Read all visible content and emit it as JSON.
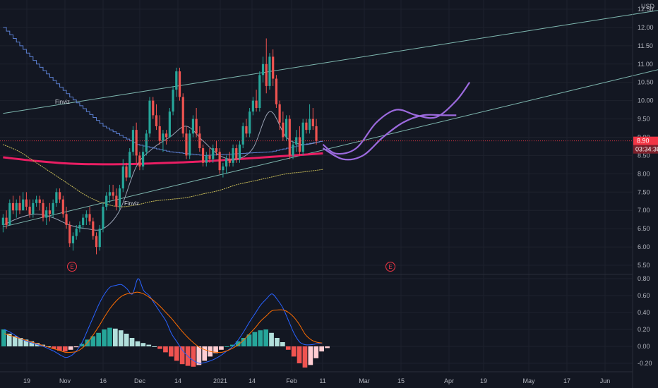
{
  "chart_data": [
    {
      "type": "candlestick",
      "currency": "USD",
      "ylim": [
        5.25,
        12.75
      ],
      "y_ticks": [
        "12.50",
        "12.00",
        "11.50",
        "11.00",
        "10.50",
        "10.00",
        "9.50",
        "9.00",
        "8.50",
        "8.00",
        "7.50",
        "7.00",
        "6.50",
        "6.00",
        "5.50"
      ],
      "current_price": "8.90",
      "countdown": "03:34:36",
      "annotations": [
        "Finviz",
        "Finviz"
      ],
      "events": [
        "E",
        "E"
      ],
      "candles": [
        [
          6.6,
          6.9,
          6.4,
          6.8
        ],
        [
          6.8,
          7.0,
          6.5,
          6.6
        ],
        [
          6.6,
          7.3,
          6.6,
          7.2
        ],
        [
          7.2,
          7.4,
          6.9,
          7.0
        ],
        [
          7.0,
          7.3,
          6.8,
          7.2
        ],
        [
          7.2,
          7.4,
          6.9,
          7.0
        ],
        [
          7.0,
          7.5,
          7.0,
          7.3
        ],
        [
          7.3,
          7.5,
          7.0,
          7.1
        ],
        [
          7.1,
          7.3,
          6.8,
          6.9
        ],
        [
          6.9,
          7.3,
          6.8,
          7.2
        ],
        [
          7.2,
          7.4,
          7.1,
          7.3
        ],
        [
          7.3,
          7.4,
          7.0,
          7.2
        ],
        [
          7.2,
          7.3,
          6.7,
          6.8
        ],
        [
          6.8,
          7.1,
          6.6,
          7.0
        ],
        [
          7.0,
          7.2,
          6.7,
          6.9
        ],
        [
          6.9,
          7.3,
          6.8,
          7.2
        ],
        [
          7.2,
          7.6,
          7.1,
          7.5
        ],
        [
          7.5,
          7.6,
          7.2,
          7.3
        ],
        [
          7.3,
          7.4,
          6.8,
          6.9
        ],
        [
          6.9,
          7.1,
          6.5,
          6.6
        ],
        [
          6.6,
          6.7,
          6.0,
          6.1
        ],
        [
          6.1,
          6.4,
          5.9,
          6.3
        ],
        [
          6.3,
          6.6,
          6.2,
          6.5
        ],
        [
          6.5,
          6.7,
          6.4,
          6.6
        ],
        [
          6.6,
          6.9,
          6.5,
          6.8
        ],
        [
          6.8,
          7.0,
          6.6,
          6.9
        ],
        [
          6.9,
          7.1,
          6.6,
          6.7
        ],
        [
          6.7,
          6.8,
          6.2,
          6.3
        ],
        [
          6.3,
          6.4,
          5.8,
          6.0
        ],
        [
          6.0,
          6.6,
          5.9,
          6.5
        ],
        [
          6.5,
          7.2,
          6.4,
          7.1
        ],
        [
          7.1,
          7.5,
          7.0,
          7.4
        ],
        [
          7.4,
          7.7,
          7.2,
          7.5
        ],
        [
          7.5,
          7.7,
          7.3,
          7.4
        ],
        [
          7.4,
          7.6,
          7.0,
          7.1
        ],
        [
          7.1,
          7.7,
          7.0,
          7.6
        ],
        [
          7.6,
          8.4,
          7.5,
          8.2
        ],
        [
          8.2,
          8.3,
          7.8,
          7.9
        ],
        [
          7.9,
          8.7,
          7.9,
          8.6
        ],
        [
          8.6,
          9.3,
          8.5,
          9.2
        ],
        [
          9.2,
          9.4,
          8.3,
          8.5
        ],
        [
          8.5,
          8.6,
          8.1,
          8.2
        ],
        [
          8.2,
          8.8,
          8.1,
          8.6
        ],
        [
          8.6,
          9.2,
          8.5,
          9.1
        ],
        [
          9.1,
          10.1,
          9.0,
          10.0
        ],
        [
          10.0,
          10.1,
          9.5,
          9.6
        ],
        [
          9.6,
          9.9,
          9.2,
          9.3
        ],
        [
          9.3,
          9.6,
          8.8,
          8.9
        ],
        [
          8.9,
          9.2,
          8.6,
          9.1
        ],
        [
          9.1,
          9.2,
          8.8,
          9.0
        ],
        [
          9.0,
          9.8,
          9.0,
          9.7
        ],
        [
          9.7,
          10.4,
          9.6,
          10.3
        ],
        [
          10.3,
          10.9,
          10.1,
          10.8
        ],
        [
          10.8,
          10.9,
          10.0,
          10.1
        ],
        [
          10.1,
          10.2,
          9.0,
          9.1
        ],
        [
          9.1,
          9.3,
          8.4,
          8.5
        ],
        [
          8.5,
          9.2,
          8.4,
          9.1
        ],
        [
          9.1,
          9.6,
          9.0,
          9.5
        ],
        [
          9.5,
          9.8,
          9.0,
          9.1
        ],
        [
          9.1,
          9.3,
          8.6,
          8.7
        ],
        [
          8.7,
          8.8,
          8.2,
          8.3
        ],
        [
          8.3,
          8.6,
          8.2,
          8.5
        ],
        [
          8.5,
          8.7,
          8.3,
          8.4
        ],
        [
          8.4,
          8.8,
          8.3,
          8.7
        ],
        [
          8.7,
          8.9,
          8.5,
          8.6
        ],
        [
          8.6,
          8.7,
          8.0,
          8.1
        ],
        [
          8.1,
          8.3,
          7.9,
          8.2
        ],
        [
          8.2,
          8.5,
          8.0,
          8.4
        ],
        [
          8.4,
          8.6,
          8.2,
          8.3
        ],
        [
          8.3,
          8.8,
          8.2,
          8.7
        ],
        [
          8.7,
          8.8,
          8.3,
          8.4
        ],
        [
          8.4,
          8.9,
          8.3,
          8.8
        ],
        [
          8.8,
          9.4,
          8.7,
          9.3
        ],
        [
          9.3,
          9.5,
          9.0,
          9.1
        ],
        [
          9.1,
          9.8,
          9.0,
          9.7
        ],
        [
          9.7,
          10.1,
          9.6,
          10.0
        ],
        [
          10.0,
          10.3,
          9.7,
          9.8
        ],
        [
          9.8,
          10.8,
          9.7,
          10.7
        ],
        [
          10.7,
          11.2,
          10.5,
          11.0
        ],
        [
          11.0,
          11.7,
          10.2,
          10.4
        ],
        [
          10.4,
          11.3,
          10.3,
          11.2
        ],
        [
          11.2,
          11.4,
          10.4,
          10.6
        ],
        [
          10.6,
          10.7,
          9.8,
          9.9
        ],
        [
          9.9,
          10.0,
          9.2,
          9.4
        ],
        [
          9.4,
          9.7,
          8.9,
          9.0
        ],
        [
          9.0,
          9.6,
          8.9,
          9.5
        ],
        [
          9.5,
          9.6,
          8.4,
          8.5
        ],
        [
          8.5,
          8.9,
          8.4,
          8.8
        ],
        [
          8.8,
          9.2,
          8.6,
          9.0
        ],
        [
          9.0,
          9.3,
          8.5,
          8.6
        ],
        [
          8.6,
          9.5,
          8.5,
          9.4
        ],
        [
          9.4,
          9.5,
          9.1,
          9.2
        ],
        [
          9.2,
          9.9,
          9.1,
          9.5
        ],
        [
          9.5,
          9.8,
          9.2,
          9.3
        ],
        [
          9.3,
          9.5,
          8.8,
          8.9
        ]
      ],
      "series": [
        {
          "name": "",
          "kind": "sma-pink",
          "x": [
            0,
            10,
            20,
            30,
            40,
            50,
            60,
            70,
            80,
            90,
            96
          ],
          "values": [
            8.45,
            8.35,
            8.28,
            8.26,
            8.27,
            8.3,
            8.34,
            8.4,
            8.46,
            8.52,
            8.56
          ]
        },
        {
          "name": "",
          "kind": "ma-yellow",
          "x": [
            0,
            5,
            10,
            15,
            20,
            25,
            30,
            35,
            40,
            45,
            50,
            55,
            60,
            65,
            70,
            75,
            80,
            85,
            90,
            96
          ],
          "values": [
            8.8,
            8.6,
            8.3,
            8.0,
            7.7,
            7.4,
            7.2,
            7.1,
            7.15,
            7.25,
            7.3,
            7.35,
            7.45,
            7.55,
            7.7,
            7.8,
            7.9,
            8.0,
            8.05,
            8.12
          ]
        },
        {
          "name": "",
          "kind": "ma-thin",
          "x": [
            0,
            5,
            10,
            15,
            20,
            25,
            30,
            35,
            40,
            45,
            50,
            55,
            60,
            65,
            70,
            75,
            80,
            85,
            90,
            96
          ],
          "values": [
            6.6,
            6.8,
            6.9,
            6.8,
            6.6,
            6.5,
            6.5,
            7.0,
            8.2,
            8.7,
            9.0,
            9.3,
            8.9,
            8.5,
            8.4,
            8.7,
            9.7,
            9.0,
            8.8,
            8.9
          ]
        },
        {
          "name": "",
          "kind": "step-blue",
          "x": [
            0,
            10,
            20,
            30,
            40,
            50,
            60,
            70,
            80,
            90,
            96
          ],
          "values": [
            12.0,
            11.0,
            10.1,
            9.3,
            8.8,
            8.6,
            8.5,
            8.55,
            8.6,
            8.8,
            8.9
          ]
        },
        {
          "name": "",
          "kind": "projection",
          "x": [
            96,
            100,
            106,
            112,
            118,
            124,
            130,
            136,
            140
          ],
          "values": [
            8.8,
            8.55,
            8.7,
            9.4,
            9.75,
            9.6,
            9.55,
            10.0,
            10.5
          ]
        },
        {
          "name": "",
          "kind": "projection",
          "x": [
            96,
            102,
            108,
            114,
            120,
            126,
            132,
            136
          ],
          "values": [
            8.7,
            8.4,
            8.5,
            9.0,
            9.4,
            9.6,
            9.6,
            9.6
          ]
        }
      ],
      "trendlines": [
        {
          "x": [
            0,
            199
          ],
          "values": [
            9.65,
            12.5
          ]
        },
        {
          "x": [
            0,
            199
          ],
          "values": [
            6.55,
            10.9
          ]
        }
      ]
    },
    {
      "type": "macd",
      "ylim": [
        -0.3,
        0.85
      ],
      "y_ticks": [
        "0.80",
        "0.60",
        "0.40",
        "0.20",
        "0.00",
        "-0.20"
      ],
      "macd": [
        0.2,
        0.17,
        0.13,
        0.09,
        0.06,
        0.04,
        0.02,
        0.0,
        -0.03,
        -0.06,
        -0.1,
        -0.13,
        -0.11,
        -0.05,
        0.05,
        0.2,
        0.35,
        0.5,
        0.62,
        0.7,
        0.72,
        0.73,
        0.68,
        0.62,
        0.8,
        0.66,
        0.6,
        0.5,
        0.4,
        0.3,
        0.15,
        0.05,
        -0.05,
        -0.12,
        -0.17,
        -0.2,
        -0.19,
        -0.17,
        -0.14,
        -0.1,
        -0.05,
        0.0,
        0.08,
        0.18,
        0.29,
        0.39,
        0.49,
        0.56,
        0.62,
        0.55,
        0.45,
        0.3,
        0.15,
        0.05,
        0.02,
        0.02,
        0.03,
        0.04
      ],
      "signal": [
        0.15,
        0.13,
        0.11,
        0.09,
        0.07,
        0.05,
        0.03,
        0.01,
        -0.01,
        -0.03,
        -0.05,
        -0.07,
        -0.07,
        -0.06,
        -0.02,
        0.05,
        0.14,
        0.24,
        0.35,
        0.45,
        0.53,
        0.59,
        0.62,
        0.63,
        0.64,
        0.62,
        0.58,
        0.53,
        0.47,
        0.4,
        0.33,
        0.25,
        0.17,
        0.1,
        0.04,
        -0.01,
        -0.04,
        -0.06,
        -0.07,
        -0.07,
        -0.05,
        -0.02,
        0.02,
        0.08,
        0.15,
        0.22,
        0.3,
        0.36,
        0.42,
        0.43,
        0.43,
        0.4,
        0.34,
        0.25,
        0.14,
        0.08,
        0.05,
        0.04
      ],
      "histogram": [
        0.2,
        0.15,
        0.12,
        0.1,
        0.08,
        0.06,
        0.04,
        0.02,
        0.0,
        -0.03,
        -0.05,
        -0.06,
        -0.04,
        -0.01,
        0.03,
        0.08,
        0.12,
        0.16,
        0.2,
        0.22,
        0.21,
        0.19,
        0.15,
        0.1,
        0.06,
        0.04,
        0.02,
        0.0,
        -0.03,
        -0.07,
        -0.12,
        -0.17,
        -0.21,
        -0.23,
        -0.24,
        -0.22,
        -0.17,
        -0.12,
        -0.08,
        -0.04,
        0.0,
        0.02,
        0.06,
        0.1,
        0.14,
        0.17,
        0.19,
        0.2,
        0.16,
        0.1,
        0.05,
        -0.04,
        -0.12,
        -0.2,
        -0.25,
        -0.22,
        -0.14,
        -0.06,
        -0.02
      ]
    }
  ],
  "x_axis": {
    "labels": [
      "19",
      "Nov",
      "16",
      "Dec",
      "14",
      "2021",
      "14",
      "Feb",
      "11",
      "Mar",
      "15",
      "Apr",
      "19",
      "May",
      "17",
      "Jun"
    ]
  },
  "colors": {
    "background": "#131722",
    "up": "#26a69a",
    "down": "#ef5350",
    "sma": "#e91e63",
    "yellow_ma": "#c9bd58",
    "thin_ma": "#9aa3b5",
    "step": "#5b7fd0",
    "projection": "#9c6ade",
    "channel": "#7fb8b0",
    "macd_line": "#2962ff",
    "signal_line": "#ff6d00",
    "price_label": "#f23645"
  }
}
